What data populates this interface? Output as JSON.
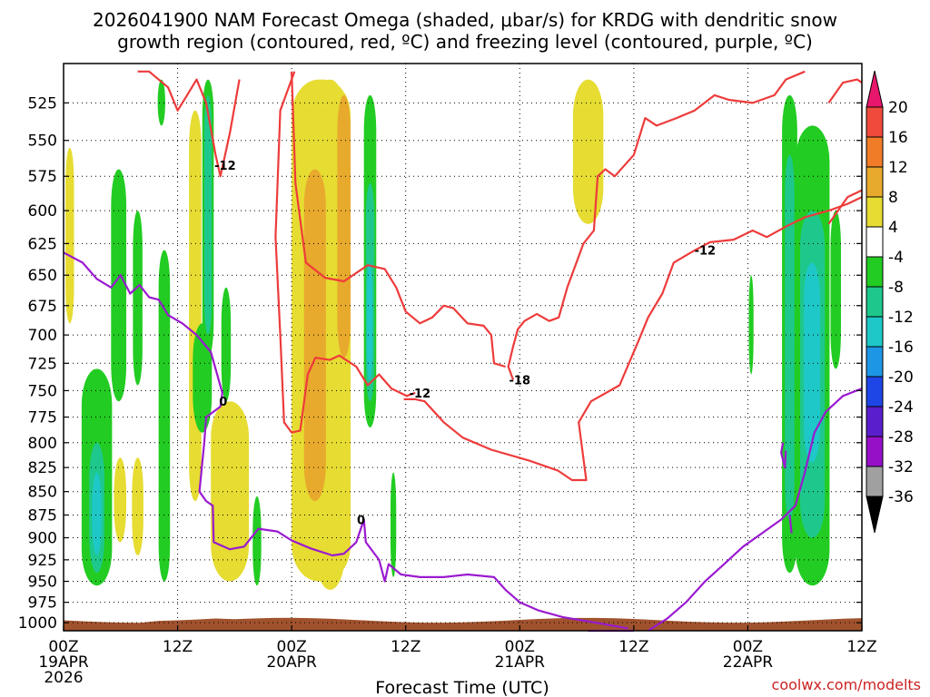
{
  "chart_data": {
    "type": "heatmap",
    "title_line1": "2026041900 NAM Forecast Omega (shaded, μbar/s) for KRDG with dendritic snow",
    "title_line2": "growth region (contoured, red, ºC) and freezing level (contoured, purple, ºC)",
    "xlabel": "Forecast Time (UTC)",
    "credit": "coolwx.com/modelts",
    "x_range_hours": [
      0,
      84
    ],
    "y_range_hpa": [
      1010,
      500
    ],
    "y_ticks": [
      525,
      550,
      575,
      600,
      625,
      650,
      675,
      700,
      725,
      750,
      775,
      800,
      825,
      850,
      875,
      900,
      925,
      950,
      975,
      1000
    ],
    "x_ticks": [
      {
        "h": 0,
        "l1": "00Z",
        "l2": "19APR",
        "l3": "2026"
      },
      {
        "h": 12,
        "l1": "12Z",
        "l2": "",
        "l3": ""
      },
      {
        "h": 24,
        "l1": "00Z",
        "l2": "20APR",
        "l3": ""
      },
      {
        "h": 36,
        "l1": "12Z",
        "l2": "",
        "l3": ""
      },
      {
        "h": 48,
        "l1": "00Z",
        "l2": "21APR",
        "l3": ""
      },
      {
        "h": 60,
        "l1": "12Z",
        "l2": "",
        "l3": ""
      },
      {
        "h": 72,
        "l1": "00Z",
        "l2": "22APR",
        "l3": ""
      },
      {
        "h": 84,
        "l1": "12Z",
        "l2": "",
        "l3": ""
      }
    ],
    "colorbar": {
      "labels": [
        "20",
        "16",
        "12",
        "8",
        "4",
        "-4",
        "-8",
        "-12",
        "-16",
        "-20",
        "-24",
        "-28",
        "-32",
        "-36"
      ],
      "colors": [
        "#e8166c",
        "#f04a3c",
        "#f07c28",
        "#e8aa2c",
        "#e6dc32",
        "#ffffff",
        "#22cc22",
        "#1ec88c",
        "#1ec8c8",
        "#1e96e6",
        "#1e46e6",
        "#5a1ecc",
        "#9610c8",
        "#a0a0a0",
        "#000000"
      ]
    },
    "contour_labels": [
      {
        "text": "-12",
        "h": 17.0,
        "p": 567
      },
      {
        "text": "-12",
        "h": 37.5,
        "p": 752
      },
      {
        "text": "-18",
        "h": 48.0,
        "p": 740
      },
      {
        "text": "-12",
        "h": 67.5,
        "p": 630
      },
      {
        "text": "0",
        "h": 16.8,
        "p": 760
      },
      {
        "text": "0",
        "h": 31.3,
        "p": 880
      }
    ],
    "shaded_regions": [
      {
        "color": "#e6dc32",
        "h0": 24.0,
        "h1": 30.2,
        "p0": 510,
        "p1": 950
      },
      {
        "color": "#e6dc32",
        "h0": 26.5,
        "h1": 29.6,
        "p0": 510,
        "p1": 960
      },
      {
        "color": "#e8aa2c",
        "h0": 25.3,
        "h1": 27.6,
        "p0": 570,
        "p1": 860
      },
      {
        "color": "#e8aa2c",
        "h0": 28.8,
        "h1": 30.2,
        "p0": 520,
        "p1": 720
      },
      {
        "color": "#e6dc32",
        "h0": 15.5,
        "h1": 19.5,
        "p0": 760,
        "p1": 950
      },
      {
        "color": "#e6dc32",
        "h0": 13.2,
        "h1": 14.5,
        "p0": 530,
        "p1": 860
      },
      {
        "color": "#e6dc32",
        "h0": 5.3,
        "h1": 6.6,
        "p0": 815,
        "p1": 905
      },
      {
        "color": "#e6dc32",
        "h0": 7.2,
        "h1": 8.4,
        "p0": 815,
        "p1": 920
      },
      {
        "color": "#e6dc32",
        "h0": 0.2,
        "h1": 1.1,
        "p0": 555,
        "p1": 690
      },
      {
        "color": "#e6dc32",
        "h0": 53.6,
        "h1": 56.8,
        "p0": 510,
        "p1": 610
      },
      {
        "color": "#22cc22",
        "h0": 1.9,
        "h1": 5.1,
        "p0": 730,
        "p1": 955
      },
      {
        "color": "#1ec88c",
        "h0": 2.7,
        "h1": 4.3,
        "p0": 800,
        "p1": 940
      },
      {
        "color": "#1ec8c8",
        "h0": 3.0,
        "h1": 4.0,
        "p0": 830,
        "p1": 920
      },
      {
        "color": "#22cc22",
        "h0": 5.0,
        "h1": 6.6,
        "p0": 570,
        "p1": 760
      },
      {
        "color": "#22cc22",
        "h0": 7.3,
        "h1": 8.3,
        "p0": 600,
        "p1": 745
      },
      {
        "color": "#22cc22",
        "h0": 10.0,
        "h1": 11.2,
        "p0": 630,
        "p1": 950
      },
      {
        "color": "#22cc22",
        "h0": 13.6,
        "h1": 15.6,
        "p0": 690,
        "p1": 790
      },
      {
        "color": "#22cc22",
        "h0": 14.6,
        "h1": 15.8,
        "p0": 510,
        "p1": 720
      },
      {
        "color": "#1ec88c",
        "h0": 14.8,
        "h1": 15.6,
        "p0": 520,
        "p1": 700
      },
      {
        "color": "#22cc22",
        "h0": 16.6,
        "h1": 17.6,
        "p0": 660,
        "p1": 760
      },
      {
        "color": "#22cc22",
        "h0": 9.9,
        "h1": 10.7,
        "p0": 510,
        "p1": 540
      },
      {
        "color": "#22cc22",
        "h0": 19.9,
        "h1": 20.8,
        "p0": 855,
        "p1": 955
      },
      {
        "color": "#22cc22",
        "h0": 31.6,
        "h1": 32.9,
        "p0": 520,
        "p1": 785
      },
      {
        "color": "#1ec88c",
        "h0": 31.8,
        "h1": 32.7,
        "p0": 580,
        "p1": 760
      },
      {
        "color": "#1ec8c8",
        "h0": 31.9,
        "h1": 32.5,
        "p0": 640,
        "p1": 740
      },
      {
        "color": "#22cc22",
        "h0": 34.4,
        "h1": 35.0,
        "p0": 830,
        "p1": 945
      },
      {
        "color": "#22cc22",
        "h0": 72.1,
        "h1": 72.6,
        "p0": 650,
        "p1": 735
      },
      {
        "color": "#22cc22",
        "h0": 75.6,
        "h1": 77.2,
        "p0": 520,
        "p1": 940
      },
      {
        "color": "#1ec88c",
        "h0": 75.9,
        "h1": 76.9,
        "p0": 560,
        "p1": 880
      },
      {
        "color": "#22cc22",
        "h0": 77.0,
        "h1": 80.6,
        "p0": 540,
        "p1": 955
      },
      {
        "color": "#1ec88c",
        "h0": 77.5,
        "h1": 80.1,
        "p0": 600,
        "p1": 900
      },
      {
        "color": "#1ec8c8",
        "h0": 77.9,
        "h1": 79.6,
        "p0": 640,
        "p1": 820
      },
      {
        "color": "#22cc22",
        "h0": 80.7,
        "h1": 81.8,
        "p0": 600,
        "p1": 730
      }
    ],
    "terrain_color": "#a0522d",
    "red_contours": [
      [
        [
          7.8,
          505
        ],
        [
          9,
          505
        ],
        [
          11,
          515
        ],
        [
          12,
          530
        ],
        [
          13,
          520
        ],
        [
          14,
          510
        ],
        [
          15,
          525
        ],
        [
          16,
          560
        ],
        [
          16.5,
          575
        ],
        [
          17.5,
          545
        ],
        [
          18.5,
          510
        ]
      ],
      [
        [
          24.3,
          505
        ],
        [
          22.8,
          530
        ],
        [
          22.3,
          620
        ],
        [
          22.8,
          700
        ],
        [
          23.2,
          780
        ],
        [
          24,
          790
        ],
        [
          24.9,
          788
        ],
        [
          25.7,
          735
        ],
        [
          26.5,
          720
        ],
        [
          28,
          722
        ],
        [
          29,
          718
        ],
        [
          30.8,
          728
        ],
        [
          32,
          745
        ],
        [
          33.2,
          735
        ],
        [
          34.5,
          748
        ],
        [
          36.1,
          755
        ],
        [
          37,
          752
        ]
      ],
      [
        [
          24,
          505
        ],
        [
          24.4,
          580
        ],
        [
          25.5,
          640
        ],
        [
          27.5,
          652
        ],
        [
          29.5,
          655
        ],
        [
          32,
          642
        ],
        [
          33.8,
          645
        ],
        [
          35,
          660
        ],
        [
          36,
          680
        ],
        [
          37.5,
          690
        ],
        [
          38.8,
          685
        ],
        [
          40,
          675
        ],
        [
          41,
          677
        ],
        [
          42.5,
          690
        ],
        [
          44.2,
          692
        ],
        [
          45,
          700
        ],
        [
          45.3,
          725
        ],
        [
          46.5,
          728
        ]
      ],
      [
        [
          47.3,
          740
        ],
        [
          46.8,
          728
        ],
        [
          47.3,
          710
        ],
        [
          47.8,
          695
        ],
        [
          48.5,
          688
        ],
        [
          49.8,
          682
        ],
        [
          51.1,
          688
        ],
        [
          52.1,
          685
        ],
        [
          53,
          660
        ],
        [
          54.7,
          625
        ],
        [
          55.8,
          615
        ],
        [
          56.2,
          575
        ],
        [
          57,
          570
        ],
        [
          58,
          575
        ],
        [
          60,
          560
        ],
        [
          61.2,
          535
        ],
        [
          62.4,
          540
        ],
        [
          64.5,
          535
        ],
        [
          66.4,
          530
        ],
        [
          68.5,
          520
        ],
        [
          70,
          523
        ],
        [
          72.5,
          525
        ],
        [
          74.8,
          520
        ],
        [
          76,
          510
        ],
        [
          78,
          505
        ]
      ],
      [
        [
          35.8,
          758
        ],
        [
          37,
          758
        ],
        [
          38,
          760
        ],
        [
          40,
          780
        ],
        [
          42,
          795
        ],
        [
          45,
          807
        ],
        [
          49,
          818
        ],
        [
          52,
          828
        ],
        [
          53.5,
          838
        ],
        [
          55,
          838
        ],
        [
          54.2,
          780
        ],
        [
          55.5,
          760
        ],
        [
          58.5,
          745
        ],
        [
          60.5,
          705
        ],
        [
          61.5,
          685
        ],
        [
          63,
          665
        ],
        [
          64.2,
          640
        ],
        [
          66,
          632
        ],
        [
          68,
          624
        ],
        [
          70.5,
          622
        ],
        [
          72.5,
          615
        ],
        [
          74,
          620
        ],
        [
          76,
          612
        ],
        [
          78,
          605
        ],
        [
          80.5,
          600
        ],
        [
          82.5,
          595
        ],
        [
          84,
          590
        ]
      ],
      [
        [
          80.5,
          610
        ],
        [
          82.5,
          590
        ],
        [
          84,
          585
        ]
      ],
      [
        [
          80.5,
          525
        ],
        [
          82,
          512
        ],
        [
          83.5,
          510
        ],
        [
          84,
          512
        ]
      ]
    ],
    "purple_contours": [
      [
        [
          0,
          632
        ],
        [
          2,
          640
        ],
        [
          3.5,
          653
        ],
        [
          5,
          660
        ],
        [
          6,
          650
        ],
        [
          7,
          665
        ],
        [
          8,
          658
        ],
        [
          9,
          668
        ],
        [
          10,
          670
        ],
        [
          11,
          683
        ],
        [
          12.5,
          690
        ],
        [
          14,
          700
        ],
        [
          15.5,
          715
        ],
        [
          16.7,
          752
        ],
        [
          16.5,
          765
        ],
        [
          15,
          775
        ],
        [
          14.8,
          800
        ],
        [
          14.3,
          850
        ],
        [
          15,
          860
        ],
        [
          15.7,
          865
        ],
        [
          15.8,
          905
        ],
        [
          17.5,
          913
        ],
        [
          19,
          910
        ],
        [
          20.5,
          890
        ],
        [
          22.5,
          893
        ],
        [
          24,
          903
        ],
        [
          26,
          912
        ],
        [
          28.3,
          920
        ],
        [
          29.5,
          918
        ],
        [
          30.8,
          905
        ],
        [
          31.6,
          880
        ],
        [
          31.8,
          905
        ],
        [
          33.2,
          925
        ],
        [
          33.8,
          950
        ],
        [
          34.2,
          930
        ],
        [
          35.5,
          942
        ],
        [
          37.5,
          945
        ],
        [
          40,
          945
        ],
        [
          42.5,
          942
        ],
        [
          45.3,
          945
        ],
        [
          46.5,
          960
        ],
        [
          48,
          975
        ],
        [
          50,
          985
        ],
        [
          52.5,
          993
        ],
        [
          54.5,
          997
        ],
        [
          57,
          1002
        ],
        [
          59.4,
          1007
        ]
      ],
      [
        [
          55.2,
          1012
        ],
        [
          58,
          1010
        ],
        [
          60,
          1010
        ]
      ],
      [
        [
          61.5,
          1010
        ],
        [
          63.5,
          995
        ],
        [
          65.5,
          975
        ],
        [
          67.5,
          950
        ],
        [
          69.5,
          930
        ],
        [
          71.5,
          910
        ],
        [
          73.5,
          895
        ],
        [
          75.5,
          880
        ],
        [
          77,
          865
        ],
        [
          78,
          830
        ],
        [
          79,
          790
        ],
        [
          80.2,
          770
        ],
        [
          82,
          755
        ],
        [
          84,
          748
        ]
      ],
      [
        [
          75.7,
          800
        ],
        [
          75.5,
          810
        ],
        [
          75.9,
          825
        ],
        [
          76,
          808
        ]
      ],
      [
        [
          76.4,
          875
        ],
        [
          76.6,
          895
        ]
      ]
    ]
  }
}
